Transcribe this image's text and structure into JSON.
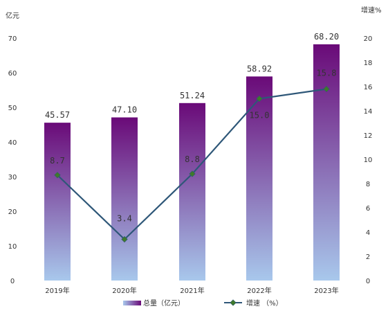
{
  "chart_data": {
    "type": "bar",
    "categories": [
      "2019年",
      "2020年",
      "2021年",
      "2022年",
      "2023年"
    ],
    "series": [
      {
        "name": "总量（亿元）",
        "type": "bar",
        "axis": "left",
        "values": [
          45.57,
          47.1,
          51.24,
          58.92,
          68.2
        ],
        "labels": [
          "45.57",
          "47.10",
          "51.24",
          "58.92",
          "68.20"
        ]
      },
      {
        "name": "增速 （%）",
        "type": "line",
        "axis": "right",
        "values": [
          8.7,
          3.4,
          8.8,
          15.0,
          15.8
        ],
        "labels": [
          "8.7",
          "3.4",
          "8.8",
          "15.0",
          "15.8"
        ]
      }
    ],
    "y_left": {
      "unit": "亿元",
      "ylim": [
        0,
        70
      ],
      "ticks": [
        "0",
        "10",
        "20",
        "30",
        "40",
        "50",
        "60",
        "70"
      ]
    },
    "y_right": {
      "unit": "增速%",
      "ylim": [
        0,
        20
      ],
      "ticks": [
        "0",
        "2",
        "4",
        "6",
        "8",
        "10",
        "12",
        "14",
        "16",
        "18",
        "20"
      ]
    },
    "legend_position": "bottom-center",
    "grid": false,
    "colors": {
      "bar_top": "#6a0a78",
      "bar_bottom": "#a8c8ec",
      "line": "#2e5778",
      "marker": "#3f7a2a"
    }
  }
}
